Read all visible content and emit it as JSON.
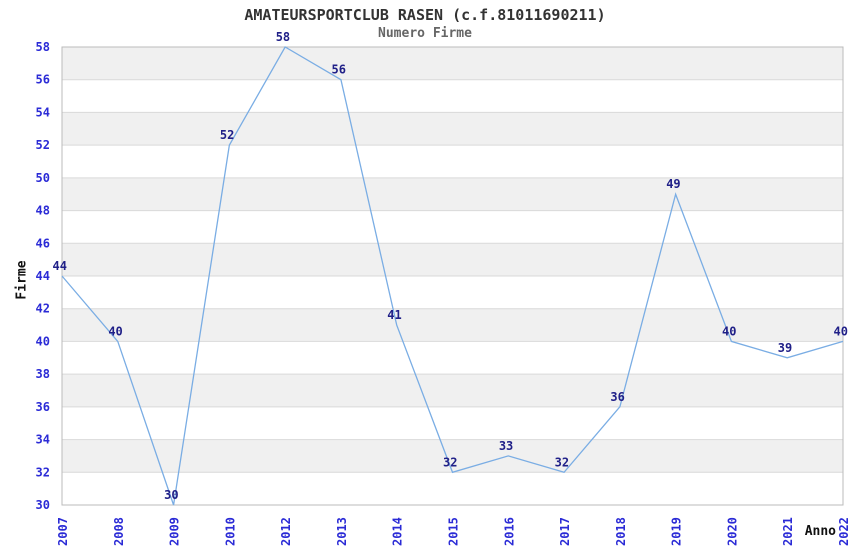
{
  "chart_data": {
    "type": "line",
    "title": "AMATEURSPORTCLUB RASEN (c.f.81011690211)",
    "subtitle": "Numero Firme",
    "xlabel": "Anno",
    "ylabel": "Firme",
    "categories": [
      "2007",
      "2008",
      "2009",
      "2010",
      "2012",
      "2013",
      "2014",
      "2015",
      "2016",
      "2017",
      "2018",
      "2019",
      "2020",
      "2021",
      "2022"
    ],
    "values": [
      44,
      40,
      30,
      52,
      58,
      56,
      41,
      32,
      33,
      32,
      36,
      49,
      40,
      39,
      40
    ],
    "ylim": [
      30,
      58
    ],
    "ytick_step": 2,
    "yticks": [
      30,
      32,
      34,
      36,
      38,
      40,
      42,
      44,
      46,
      48,
      50,
      52,
      54,
      56,
      58
    ],
    "grid": "horizontal-gridlines-with-alternating-bands",
    "legend": "none",
    "point_labels_shown": true,
    "colors": {
      "line": "#7aade4",
      "tick_label": "#2b2bd6",
      "data_label": "#202088",
      "band": "#f0f0f0",
      "gridline": "#d9d9d9",
      "plot_border": "#bbbbbb",
      "title": "#333333",
      "subtitle": "#666666",
      "axis_title": "#111111",
      "plot_background": "#ffffff"
    }
  }
}
